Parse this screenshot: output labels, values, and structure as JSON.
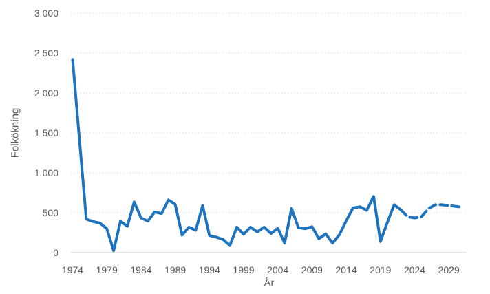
{
  "chart_data": {
    "type": "line",
    "title": "",
    "xlabel": "År",
    "ylabel": "Folkökning",
    "ylim": [
      0,
      3000
    ],
    "x_range": [
      1974,
      2031
    ],
    "grid": true,
    "legend": "none",
    "line_color": "#1e73be",
    "grid_color": "#d9d9d9",
    "axis_line_color": "#c6c6c6",
    "text_color": "#595959",
    "y_ticks": [
      {
        "label": "0",
        "value": 0
      },
      {
        "label": "500",
        "value": 500
      },
      {
        "label": "1 000",
        "value": 1000
      },
      {
        "label": "1 500",
        "value": 1500
      },
      {
        "label": "2 000",
        "value": 2000
      },
      {
        "label": "2 500",
        "value": 2500
      },
      {
        "label": "3 000",
        "value": 3000
      }
    ],
    "x_ticks": [
      {
        "label": "1974",
        "year": 1974
      },
      {
        "label": "1979",
        "year": 1979
      },
      {
        "label": "1984",
        "year": 1984
      },
      {
        "label": "1989",
        "year": 1989
      },
      {
        "label": "1994",
        "year": 1994
      },
      {
        "label": "1999",
        "year": 1999
      },
      {
        "label": "2004",
        "year": 2004
      },
      {
        "label": "2009",
        "year": 2009
      },
      {
        "label": "2014",
        "year": 2014
      },
      {
        "label": "2019",
        "year": 2019
      },
      {
        "label": "2024",
        "year": 2024
      },
      {
        "label": "2029",
        "year": 2029
      }
    ],
    "series": [
      {
        "name": "folkokning-utfall",
        "style": "solid",
        "start_year": 1974,
        "values": [
          2420,
          1420,
          420,
          390,
          370,
          300,
          25,
          395,
          330,
          635,
          435,
          395,
          510,
          490,
          660,
          605,
          220,
          320,
          280,
          590,
          215,
          195,
          165,
          90,
          320,
          230,
          320,
          260,
          320,
          240,
          305,
          120,
          555,
          315,
          300,
          325,
          175,
          235,
          120,
          225,
          400,
          560,
          575,
          530,
          705,
          140,
          375,
          600,
          535
        ]
      },
      {
        "name": "folkokning-prognos",
        "style": "dashed",
        "start_year": 2022,
        "values": [
          535,
          450,
          435,
          450,
          550,
          600,
          600,
          590,
          580,
          570
        ]
      }
    ]
  }
}
